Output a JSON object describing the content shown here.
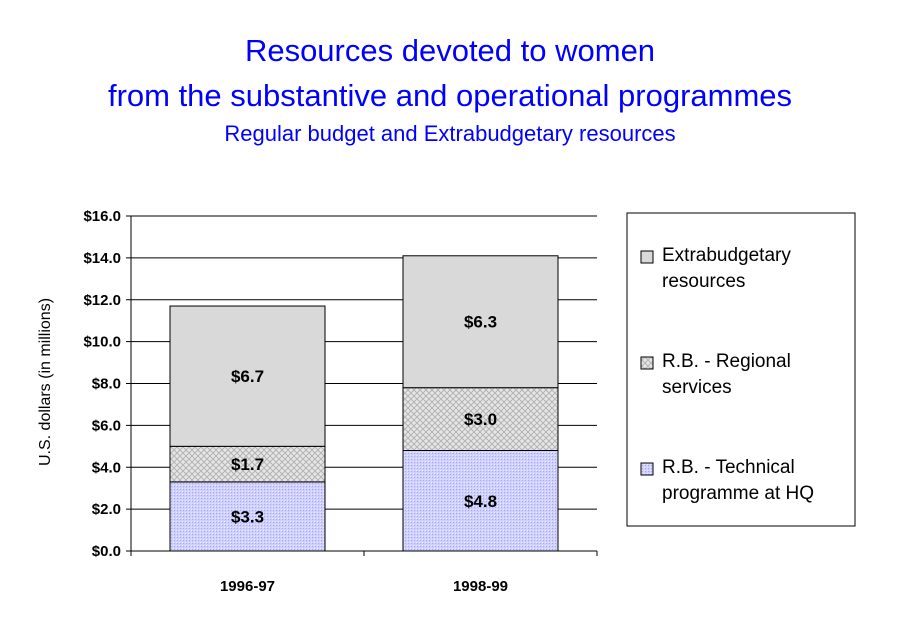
{
  "chart_data": {
    "type": "bar",
    "stacked": true,
    "title": "Resources devoted to women",
    "title_line2": "from the substantive and operational programmes",
    "subtitle": "Regular budget and Extrabudgetary resources",
    "xlabel": "",
    "ylabel": "U.S. dollars (in millions)",
    "ylim": [
      0,
      16
    ],
    "ytick_labels": [
      "$0.0",
      "$2.0",
      "$4.0",
      "$6.0",
      "$8.0",
      "$10.0",
      "$12.0",
      "$14.0",
      "$16.0"
    ],
    "categories": [
      "1996-97",
      "1998-99"
    ],
    "grid": true,
    "legend_position": "right",
    "series": [
      {
        "name": "R.B. - Technical programme at HQ",
        "legend_lines": [
          "R.B. - Technical",
          "programme at HQ"
        ],
        "values": [
          3.3,
          4.8
        ],
        "labels": [
          "$3.3",
          "$4.8"
        ],
        "color": "#c8c8ff"
      },
      {
        "name": "R.B. - Regional services",
        "legend_lines": [
          "R.B. - Regional",
          "services"
        ],
        "values": [
          1.7,
          3.0
        ],
        "labels": [
          "$1.7",
          "$3.0"
        ],
        "color": "#d8d8d8"
      },
      {
        "name": "Extrabudgetary resources",
        "legend_lines": [
          "Extrabudgetary",
          "resources"
        ],
        "values": [
          6.7,
          6.3
        ],
        "labels": [
          "$6.7",
          "$6.3"
        ],
        "color": "#d9d9d9"
      }
    ]
  }
}
